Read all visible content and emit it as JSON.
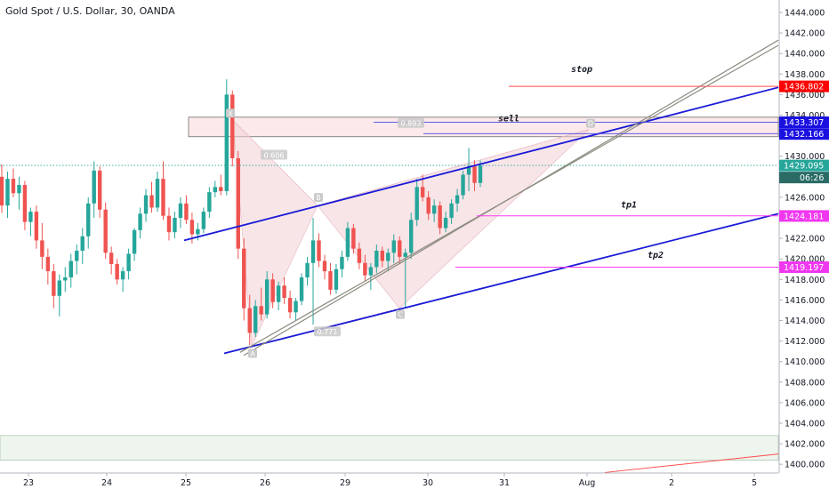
{
  "header": {
    "title": "Gold Spot / U.S. Dollar, 30, OANDA"
  },
  "colors": {
    "up": "#26a69a",
    "down": "#ef5350",
    "trend": "#1a1ad6",
    "channel": "#8c8c80",
    "magenta": "#ff3cf0",
    "red_line": "#ff4d4d",
    "pattern_fill": "#f2cfd6",
    "label_red": "#ff0000",
    "label_blue": "#1a10e0",
    "label_magenta": "#f037f0",
    "label_current": "#26a69a",
    "label_dark": "#2a6b66"
  },
  "chart_data": {
    "type": "candlestick",
    "symbol": "XAUUSD",
    "title": "Gold Spot / U.S. Dollar, 30, OANDA",
    "x_tick_labels": [
      "23",
      "24",
      "25",
      "26",
      "29",
      "30",
      "31",
      "Aug",
      "2",
      "5"
    ],
    "y_ticks": [
      "1444.000",
      "1442.000",
      "1440.000",
      "1438.000",
      "1436.000",
      "1434.000",
      "1432.000",
      "1430.000",
      "1428.000",
      "1426.000",
      "1424.000",
      "1422.000",
      "1420.000",
      "1418.000",
      "1416.000",
      "1414.000",
      "1412.000",
      "1410.000",
      "1408.000",
      "1406.000",
      "1404.000",
      "1402.000",
      "1400.000"
    ],
    "ylim": [
      1399,
      1445
    ],
    "grid": false,
    "current_price": "1429.095",
    "countdown": "06:26",
    "levels": [
      {
        "name": "stop",
        "price": "1436.802"
      },
      {
        "name": "zone_top",
        "price": "1433.307"
      },
      {
        "name": "sell",
        "price": "1432.166"
      },
      {
        "name": "tp1",
        "price": "1424.181"
      },
      {
        "name": "tp2",
        "price": "1419.197"
      }
    ],
    "annotations": [
      "stop",
      "sell",
      "tp1",
      "tp2"
    ],
    "pattern_points": [
      "X",
      "A",
      "B",
      "C",
      "D"
    ],
    "fib_labels": [
      "0.606",
      "0.771",
      "0.893"
    ],
    "ohlc_approx": [
      [
        1428.0,
        1429.2,
        1424.5,
        1425.2
      ],
      [
        1425.2,
        1428.5,
        1424.0,
        1427.8
      ],
      [
        1427.8,
        1428.8,
        1426.0,
        1426.4
      ],
      [
        1426.4,
        1428.0,
        1424.8,
        1427.2
      ],
      [
        1427.2,
        1427.6,
        1422.8,
        1423.6
      ],
      [
        1423.6,
        1425.0,
        1422.2,
        1424.6
      ],
      [
        1424.6,
        1425.2,
        1421.0,
        1421.8
      ],
      [
        1421.8,
        1423.5,
        1419.0,
        1420.2
      ],
      [
        1420.2,
        1421.0,
        1417.5,
        1418.8
      ],
      [
        1418.8,
        1419.5,
        1415.2,
        1416.4
      ],
      [
        1416.4,
        1418.5,
        1414.4,
        1417.9
      ],
      [
        1417.9,
        1419.2,
        1416.8,
        1418.2
      ],
      [
        1418.2,
        1420.5,
        1417.2,
        1419.8
      ],
      [
        1419.8,
        1421.4,
        1418.5,
        1420.8
      ],
      [
        1420.8,
        1423.0,
        1419.5,
        1422.2
      ],
      [
        1422.2,
        1426.0,
        1421.0,
        1425.4
      ],
      [
        1425.4,
        1429.5,
        1424.0,
        1428.6
      ],
      [
        1428.6,
        1429.0,
        1424.0,
        1424.8
      ],
      [
        1424.8,
        1425.5,
        1420.0,
        1420.6
      ],
      [
        1420.6,
        1421.2,
        1418.5,
        1419.5
      ],
      [
        1419.5,
        1420.0,
        1417.5,
        1418.0
      ],
      [
        1418.0,
        1419.2,
        1416.8,
        1418.8
      ],
      [
        1418.8,
        1421.0,
        1418.0,
        1420.5
      ],
      [
        1420.5,
        1423.0,
        1419.8,
        1422.8
      ],
      [
        1422.8,
        1425.0,
        1422.0,
        1424.4
      ],
      [
        1424.4,
        1426.8,
        1423.6,
        1426.2
      ],
      [
        1426.2,
        1427.5,
        1424.5,
        1425.0
      ],
      [
        1425.0,
        1428.5,
        1424.6,
        1427.8
      ],
      [
        1427.8,
        1429.5,
        1423.8,
        1424.2
      ],
      [
        1424.2,
        1425.0,
        1421.8,
        1422.6
      ],
      [
        1422.6,
        1424.6,
        1422.0,
        1424.0
      ],
      [
        1424.0,
        1426.0,
        1423.0,
        1425.4
      ],
      [
        1425.4,
        1426.2,
        1423.4,
        1423.8
      ],
      [
        1423.8,
        1424.5,
        1421.5,
        1422.4
      ],
      [
        1422.4,
        1423.5,
        1421.8,
        1422.9
      ],
      [
        1422.9,
        1425.0,
        1422.5,
        1424.6
      ],
      [
        1424.6,
        1427.0,
        1424.0,
        1426.5
      ],
      [
        1426.5,
        1427.6,
        1426.0,
        1427.0
      ],
      [
        1427.0,
        1428.2,
        1426.2,
        1426.6
      ],
      [
        1426.6,
        1437.5,
        1426.2,
        1436.0
      ],
      [
        1436.0,
        1436.4,
        1429.0,
        1429.8
      ],
      [
        1429.8,
        1430.5,
        1420.0,
        1421.0
      ],
      [
        1421.0,
        1422.0,
        1414.0,
        1415.2
      ],
      [
        1415.2,
        1416.5,
        1411.6,
        1412.8
      ],
      [
        1412.8,
        1416.0,
        1412.4,
        1415.4
      ],
      [
        1415.4,
        1417.2,
        1414.0,
        1414.6
      ],
      [
        1414.6,
        1418.8,
        1414.2,
        1418.0
      ],
      [
        1418.0,
        1418.6,
        1415.2,
        1415.8
      ],
      [
        1415.8,
        1417.8,
        1415.0,
        1417.4
      ],
      [
        1417.4,
        1418.2,
        1415.6,
        1416.2
      ],
      [
        1416.2,
        1416.9,
        1414.2,
        1414.8
      ],
      [
        1414.8,
        1416.2,
        1414.0,
        1415.9
      ],
      [
        1415.9,
        1418.6,
        1415.5,
        1418.2
      ],
      [
        1418.2,
        1420.2,
        1417.4,
        1419.6
      ],
      [
        1419.6,
        1424.0,
        1413.6,
        1421.8
      ],
      [
        1421.8,
        1422.5,
        1419.2,
        1419.8
      ],
      [
        1419.8,
        1420.4,
        1418.0,
        1418.8
      ],
      [
        1418.8,
        1419.6,
        1416.5,
        1417.0
      ],
      [
        1417.0,
        1419.5,
        1416.6,
        1419.0
      ],
      [
        1419.0,
        1420.8,
        1418.2,
        1420.2
      ],
      [
        1420.2,
        1423.6,
        1419.8,
        1423.0
      ],
      [
        1423.0,
        1423.4,
        1420.5,
        1421.0
      ],
      [
        1421.0,
        1421.6,
        1419.0,
        1419.6
      ],
      [
        1419.6,
        1420.4,
        1417.8,
        1418.4
      ],
      [
        1418.4,
        1419.6,
        1417.0,
        1419.2
      ],
      [
        1419.2,
        1421.4,
        1418.6,
        1420.8
      ],
      [
        1420.8,
        1421.2,
        1419.2,
        1419.8
      ],
      [
        1419.8,
        1421.0,
        1418.8,
        1420.6
      ],
      [
        1420.6,
        1422.4,
        1419.6,
        1421.8
      ],
      [
        1421.8,
        1422.2,
        1419.5,
        1420.2
      ],
      [
        1420.2,
        1421.0,
        1415.2,
        1420.6
      ],
      [
        1420.6,
        1424.5,
        1420.0,
        1423.8
      ],
      [
        1423.8,
        1427.8,
        1423.2,
        1427.0
      ],
      [
        1427.0,
        1428.2,
        1425.6,
        1426.0
      ],
      [
        1426.0,
        1426.6,
        1423.8,
        1424.4
      ],
      [
        1424.4,
        1425.8,
        1423.6,
        1425.2
      ],
      [
        1425.2,
        1425.6,
        1422.4,
        1423.0
      ],
      [
        1423.0,
        1424.6,
        1422.6,
        1424.0
      ],
      [
        1424.0,
        1425.8,
        1423.4,
        1425.4
      ],
      [
        1425.4,
        1426.8,
        1424.6,
        1426.2
      ],
      [
        1426.2,
        1428.6,
        1425.8,
        1428.2
      ],
      [
        1428.2,
        1430.8,
        1426.6,
        1429.0
      ],
      [
        1429.0,
        1429.6,
        1426.6,
        1427.4
      ],
      [
        1427.4,
        1429.6,
        1427.0,
        1429.1
      ]
    ]
  }
}
